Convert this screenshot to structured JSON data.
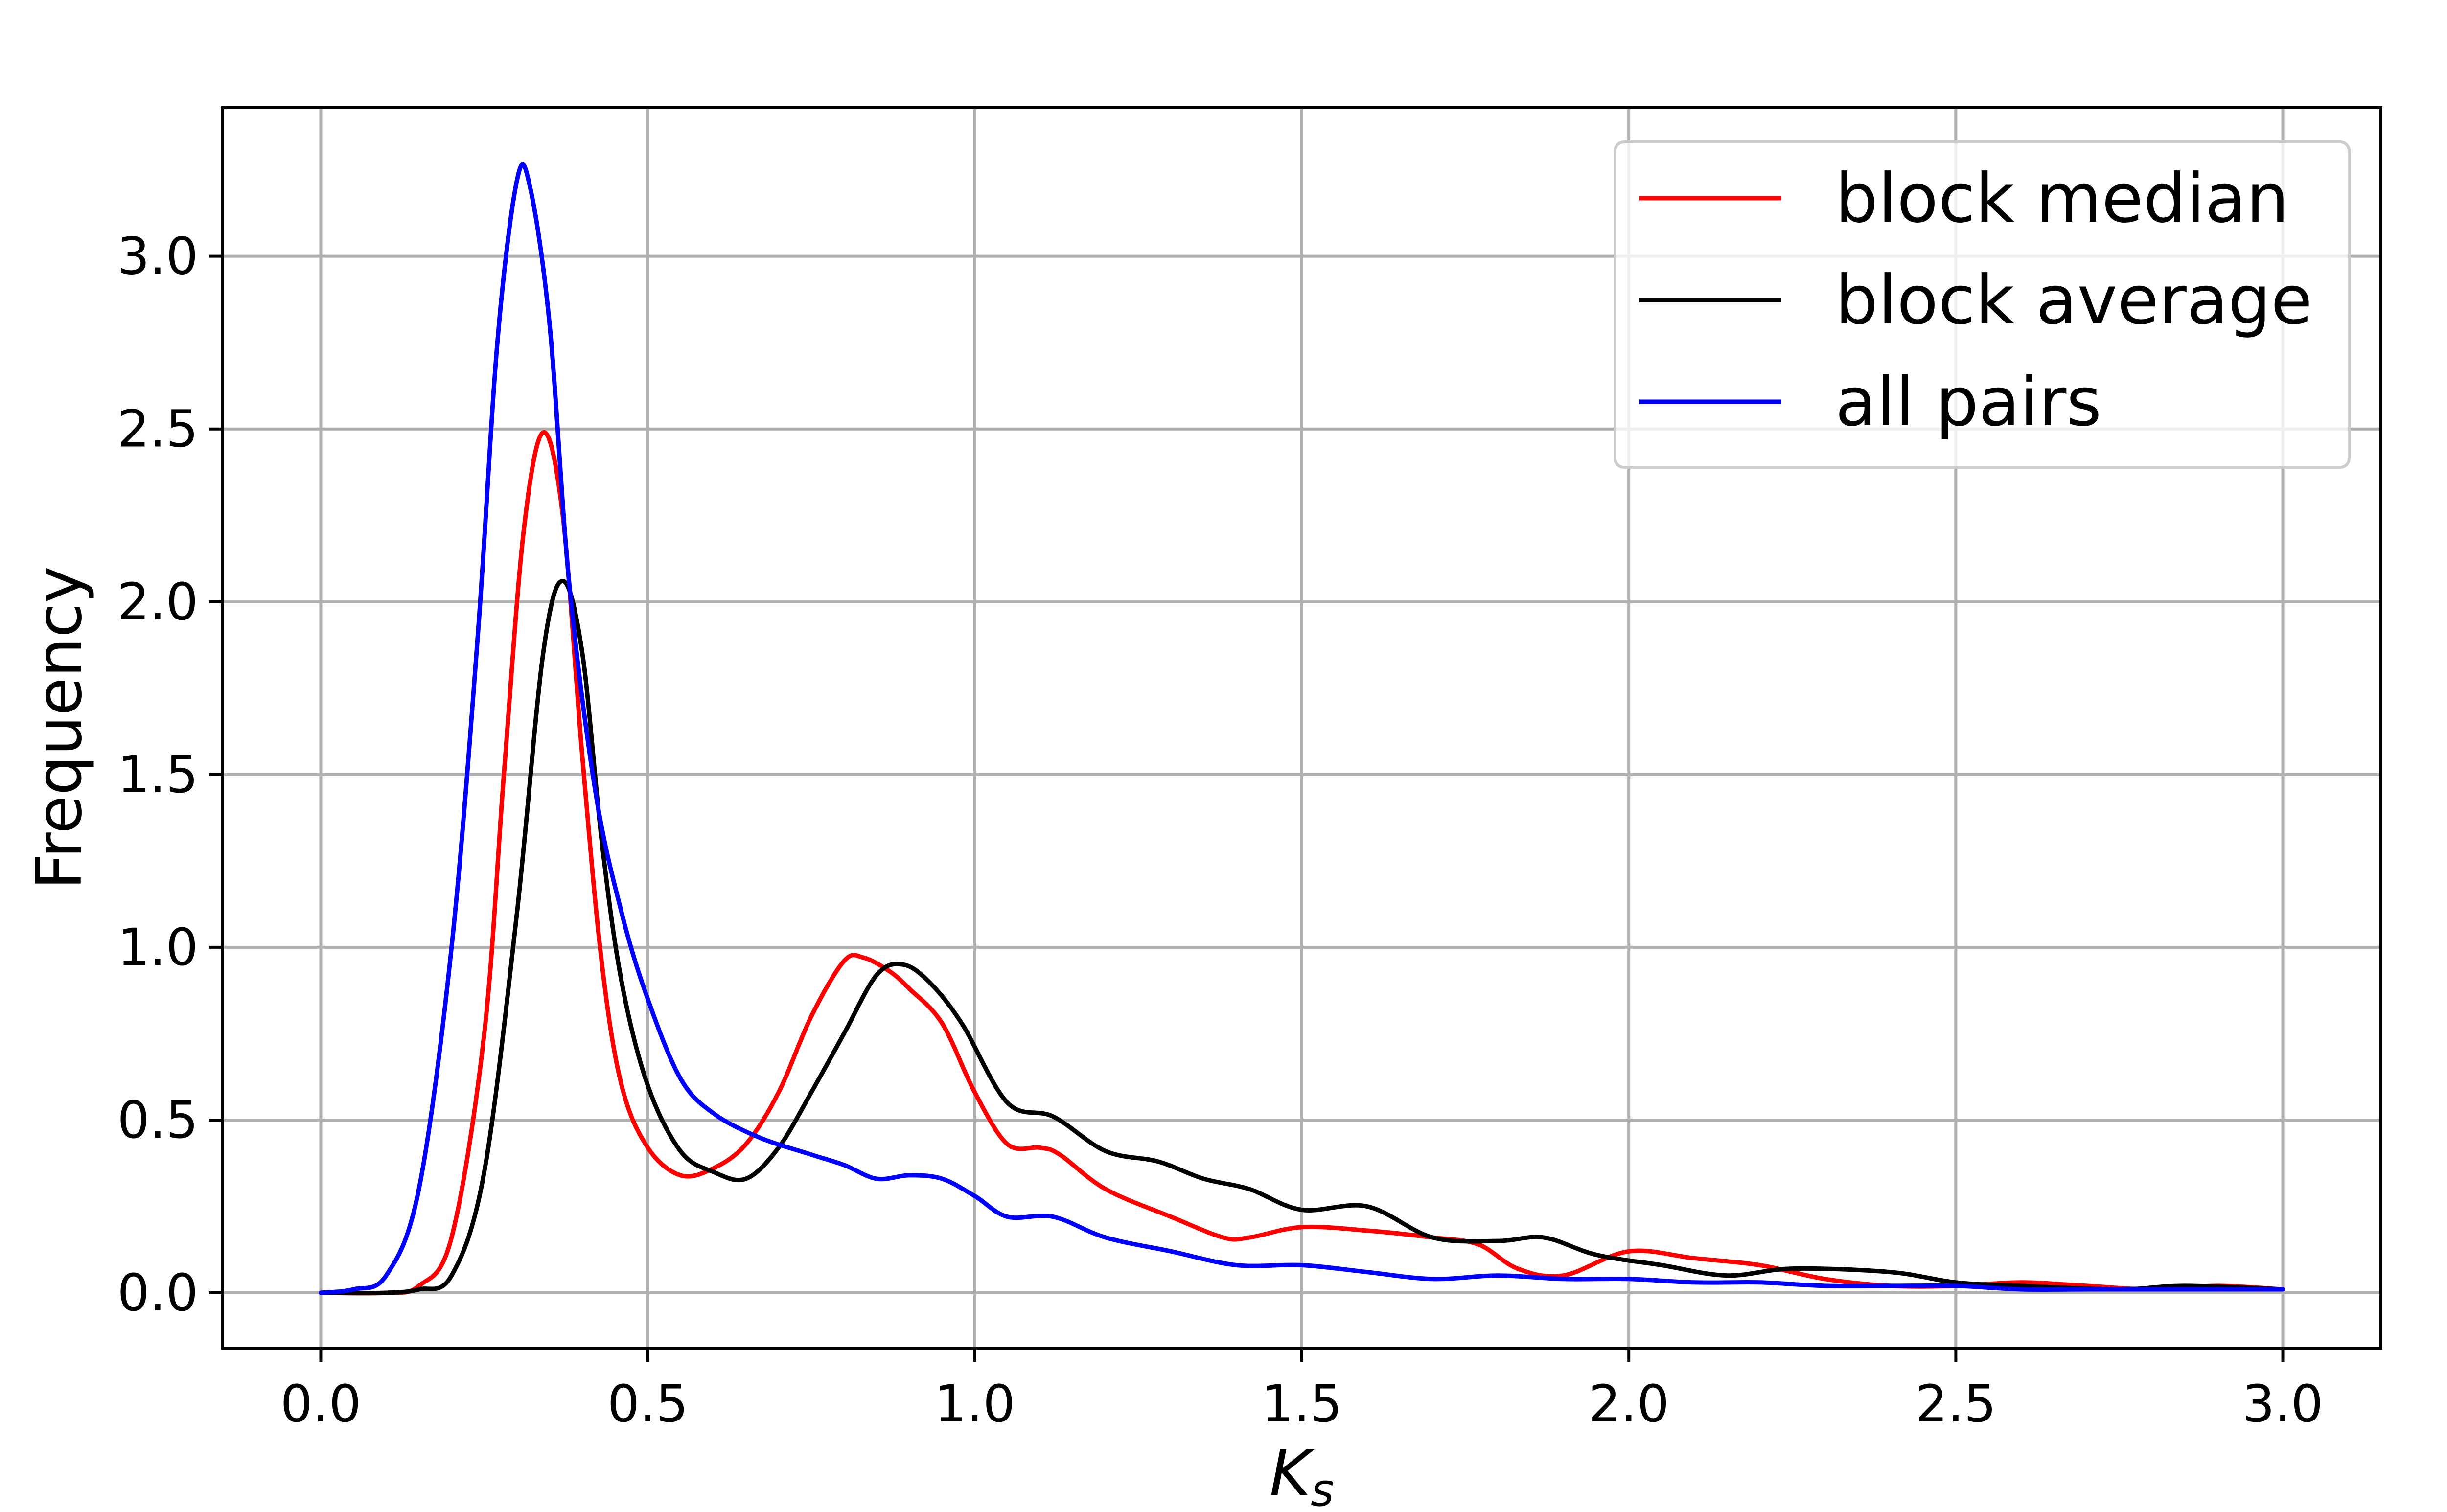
{
  "chart_data": {
    "type": "line",
    "xlabel_base": "K",
    "xlabel_sub": "s",
    "ylabel": "Frequency",
    "xlim": [
      -0.15,
      3.15
    ],
    "ylim": [
      -0.16,
      3.43
    ],
    "x_ticks": [
      "0.0",
      "0.5",
      "1.0",
      "1.5",
      "2.0",
      "2.5",
      "3.0"
    ],
    "y_ticks": [
      "0.0",
      "0.5",
      "1.0",
      "1.5",
      "2.0",
      "2.5",
      "3.0"
    ],
    "grid": true,
    "legend_position": "top-right",
    "series": [
      {
        "name": "block median",
        "color": "#ff0000",
        "points": [
          [
            0.0,
            0.0
          ],
          [
            0.1,
            0.0
          ],
          [
            0.15,
            0.02
          ],
          [
            0.2,
            0.16
          ],
          [
            0.25,
            0.75
          ],
          [
            0.28,
            1.5
          ],
          [
            0.31,
            2.2
          ],
          [
            0.34,
            2.49
          ],
          [
            0.37,
            2.25
          ],
          [
            0.4,
            1.55
          ],
          [
            0.43,
            0.95
          ],
          [
            0.46,
            0.6
          ],
          [
            0.5,
            0.42
          ],
          [
            0.55,
            0.34
          ],
          [
            0.6,
            0.36
          ],
          [
            0.65,
            0.43
          ],
          [
            0.7,
            0.58
          ],
          [
            0.75,
            0.8
          ],
          [
            0.8,
            0.96
          ],
          [
            0.83,
            0.97
          ],
          [
            0.87,
            0.93
          ],
          [
            0.9,
            0.88
          ],
          [
            0.95,
            0.78
          ],
          [
            1.0,
            0.58
          ],
          [
            1.05,
            0.43
          ],
          [
            1.1,
            0.42
          ],
          [
            1.13,
            0.4
          ],
          [
            1.2,
            0.3
          ],
          [
            1.3,
            0.22
          ],
          [
            1.38,
            0.16
          ],
          [
            1.42,
            0.16
          ],
          [
            1.5,
            0.19
          ],
          [
            1.6,
            0.18
          ],
          [
            1.7,
            0.16
          ],
          [
            1.77,
            0.14
          ],
          [
            1.83,
            0.07
          ],
          [
            1.9,
            0.05
          ],
          [
            2.0,
            0.12
          ],
          [
            2.1,
            0.1
          ],
          [
            2.2,
            0.08
          ],
          [
            2.3,
            0.04
          ],
          [
            2.4,
            0.02
          ],
          [
            2.5,
            0.02
          ],
          [
            2.6,
            0.03
          ],
          [
            2.7,
            0.02
          ],
          [
            2.8,
            0.01
          ],
          [
            2.9,
            0.02
          ],
          [
            3.0,
            0.01
          ]
        ]
      },
      {
        "name": "block average",
        "color": "#000000",
        "points": [
          [
            0.0,
            0.0
          ],
          [
            0.1,
            0.0
          ],
          [
            0.15,
            0.01
          ],
          [
            0.2,
            0.05
          ],
          [
            0.25,
            0.35
          ],
          [
            0.3,
            1.1
          ],
          [
            0.34,
            1.85
          ],
          [
            0.37,
            2.06
          ],
          [
            0.4,
            1.85
          ],
          [
            0.43,
            1.3
          ],
          [
            0.46,
            0.9
          ],
          [
            0.5,
            0.6
          ],
          [
            0.55,
            0.41
          ],
          [
            0.6,
            0.35
          ],
          [
            0.65,
            0.33
          ],
          [
            0.7,
            0.42
          ],
          [
            0.75,
            0.58
          ],
          [
            0.8,
            0.75
          ],
          [
            0.85,
            0.92
          ],
          [
            0.89,
            0.95
          ],
          [
            0.93,
            0.9
          ],
          [
            0.98,
            0.78
          ],
          [
            1.05,
            0.55
          ],
          [
            1.12,
            0.51
          ],
          [
            1.2,
            0.41
          ],
          [
            1.28,
            0.38
          ],
          [
            1.35,
            0.33
          ],
          [
            1.42,
            0.3
          ],
          [
            1.5,
            0.24
          ],
          [
            1.6,
            0.25
          ],
          [
            1.7,
            0.16
          ],
          [
            1.8,
            0.15
          ],
          [
            1.87,
            0.16
          ],
          [
            1.95,
            0.11
          ],
          [
            2.05,
            0.08
          ],
          [
            2.15,
            0.05
          ],
          [
            2.25,
            0.07
          ],
          [
            2.4,
            0.06
          ],
          [
            2.5,
            0.03
          ],
          [
            2.6,
            0.02
          ],
          [
            2.75,
            0.01
          ],
          [
            2.85,
            0.02
          ],
          [
            3.0,
            0.01
          ]
        ]
      },
      {
        "name": "all pairs",
        "color": "#0000ff",
        "points": [
          [
            0.0,
            0.0
          ],
          [
            0.05,
            0.01
          ],
          [
            0.1,
            0.05
          ],
          [
            0.15,
            0.3
          ],
          [
            0.2,
            1.0
          ],
          [
            0.24,
            1.9
          ],
          [
            0.27,
            2.75
          ],
          [
            0.3,
            3.22
          ],
          [
            0.32,
            3.2
          ],
          [
            0.35,
            2.8
          ],
          [
            0.38,
            2.05
          ],
          [
            0.42,
            1.45
          ],
          [
            0.46,
            1.1
          ],
          [
            0.5,
            0.85
          ],
          [
            0.55,
            0.62
          ],
          [
            0.6,
            0.52
          ],
          [
            0.67,
            0.45
          ],
          [
            0.75,
            0.4
          ],
          [
            0.8,
            0.37
          ],
          [
            0.85,
            0.33
          ],
          [
            0.9,
            0.34
          ],
          [
            0.95,
            0.33
          ],
          [
            1.0,
            0.28
          ],
          [
            1.05,
            0.22
          ],
          [
            1.12,
            0.22
          ],
          [
            1.2,
            0.16
          ],
          [
            1.3,
            0.12
          ],
          [
            1.4,
            0.08
          ],
          [
            1.5,
            0.08
          ],
          [
            1.6,
            0.06
          ],
          [
            1.7,
            0.04
          ],
          [
            1.8,
            0.05
          ],
          [
            1.9,
            0.04
          ],
          [
            2.0,
            0.04
          ],
          [
            2.1,
            0.03
          ],
          [
            2.2,
            0.03
          ],
          [
            2.3,
            0.02
          ],
          [
            2.4,
            0.02
          ],
          [
            2.5,
            0.02
          ],
          [
            2.6,
            0.01
          ],
          [
            2.7,
            0.01
          ],
          [
            2.8,
            0.01
          ],
          [
            2.9,
            0.01
          ],
          [
            3.0,
            0.01
          ]
        ]
      }
    ]
  }
}
